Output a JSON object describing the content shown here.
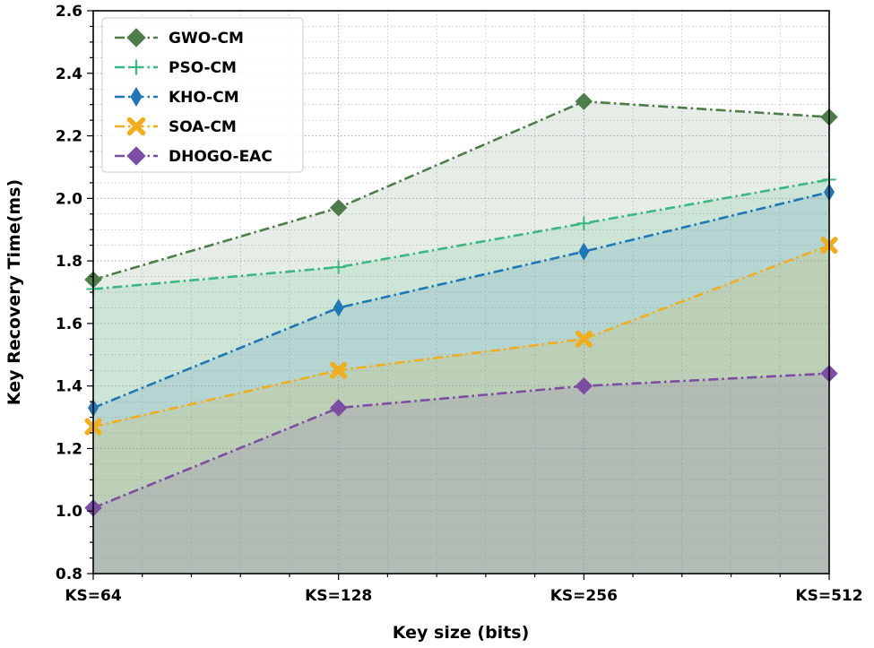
{
  "chart_data": {
    "type": "line",
    "title": "",
    "xlabel": "Key size (bits)",
    "ylabel": "Key Recovery Time(ms)",
    "categories": [
      "KS=64",
      "KS=128",
      "KS=256",
      "KS=512"
    ],
    "ylim": [
      0.8,
      2.6
    ],
    "yticks": [
      "0.8",
      "1.0",
      "1.2",
      "1.4",
      "1.6",
      "1.8",
      "2.0",
      "2.2",
      "2.4",
      "2.6"
    ],
    "grid": true,
    "area_fill": true,
    "legend_position": "top-left",
    "series": [
      {
        "name": "GWO-CM",
        "values": [
          1.74,
          1.97,
          2.31,
          2.26
        ],
        "color": "#4e7c4b",
        "marker": "diamond"
      },
      {
        "name": "PSO-CM",
        "values": [
          1.71,
          1.78,
          1.92,
          2.06
        ],
        "color": "#3cb683",
        "marker": "plus"
      },
      {
        "name": "KHO-CM",
        "values": [
          1.33,
          1.65,
          1.83,
          2.02
        ],
        "color": "#1f77b4",
        "marker": "thin-diamond"
      },
      {
        "name": "SOA-CM",
        "values": [
          1.27,
          1.45,
          1.55,
          1.85
        ],
        "color": "#f0ad1e",
        "marker": "x-filled"
      },
      {
        "name": "DHOGO-EAC",
        "values": [
          1.01,
          1.33,
          1.4,
          1.44
        ],
        "color": "#7b4ea3",
        "marker": "diamond"
      }
    ]
  }
}
